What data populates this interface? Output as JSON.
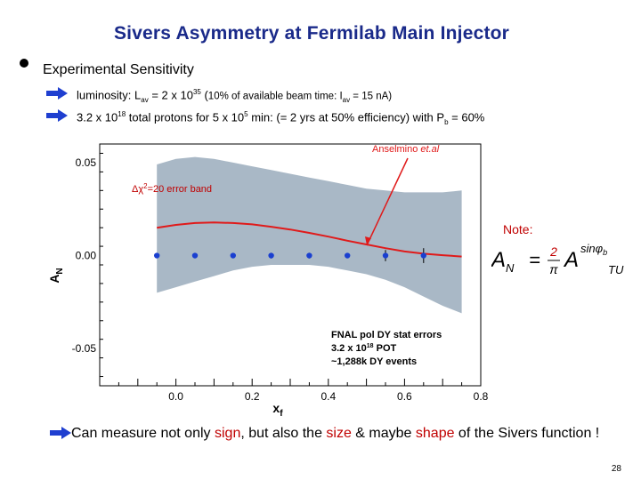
{
  "slide": {
    "title": "Sivers Asymmetry at Fermilab Main Injector",
    "subheading": "Experimental Sensitivity",
    "line1": {
      "a": "luminosity: L",
      "a_sub": "av",
      "b": " = 2 x 10",
      "b_sup": "35",
      "c": " (",
      "d": "10% of available beam time: I",
      "d_sub": "av",
      "e": " = 15 nA)"
    },
    "line2": {
      "a": "3.2 x 10",
      "a_sup": "18",
      "b": " total protons for 5 x 10",
      "b_sup": "5",
      "c": " min:  (= 2 yrs at 50% efficiency) with P",
      "c_sub": "b",
      "d": " = 60%"
    },
    "note_label": "Note:",
    "formula": {
      "lhs": "A",
      "lhs_sub": "N",
      "eq": "=",
      "num": "2",
      "den": "π",
      "rhs": "A",
      "rhs_sup": "sinφ",
      "rhs_sup_sub": "b",
      "rhs_sub": "TU"
    },
    "bottom": {
      "t1": "Can measure not only ",
      "sign": "sign",
      "t2": ", but also the ",
      "size": "size",
      "t3": " & maybe ",
      "shape": "shape",
      "t4": " of the Sivers function !"
    },
    "page_number": "28",
    "colors": {
      "title": "#1a2a8a",
      "accent_red": "#c00000",
      "arrow_blue": "#1f3fd0",
      "band": "#a9b8c6",
      "curve": "#e01a1a",
      "points": "#1a3fd0"
    }
  },
  "chart_data": {
    "type": "line",
    "xlabel": "x",
    "xlabel_sub": "f",
    "ylabel": "A",
    "ylabel_sub": "N",
    "xlim": [
      -0.2,
      0.8
    ],
    "ylim": [
      -0.07,
      0.06
    ],
    "xticks": [
      {
        "v": 0.0,
        "label": "0.0"
      },
      {
        "v": 0.2,
        "label": "0.2"
      },
      {
        "v": 0.4,
        "label": "0.4"
      },
      {
        "v": 0.6,
        "label": "0.6"
      },
      {
        "v": 0.8,
        "label": "0.8"
      }
    ],
    "yticks": [
      {
        "v": 0.05,
        "label": "0.05"
      },
      {
        "v": 0.0,
        "label": "0.00"
      },
      {
        "v": -0.05,
        "label": "-0.05"
      }
    ],
    "series": [
      {
        "name": "Anselmino et.al",
        "name_a": "Anselmino ",
        "name_b": "et.al",
        "kind": "line",
        "x": [
          -0.05,
          0.0,
          0.05,
          0.1,
          0.15,
          0.2,
          0.25,
          0.3,
          0.35,
          0.4,
          0.45,
          0.5,
          0.55,
          0.6,
          0.65,
          0.7,
          0.75
        ],
        "y": [
          0.015,
          0.0165,
          0.0175,
          0.0178,
          0.0175,
          0.0168,
          0.0155,
          0.014,
          0.0122,
          0.0102,
          0.008,
          0.006,
          0.004,
          0.0022,
          0.001,
          0.0002,
          -0.0005
        ]
      },
      {
        "name": "Δχ²=20 error band",
        "name_a": "Δχ",
        "name_sup": "2",
        "name_b": "=20 error band",
        "kind": "band",
        "x": [
          -0.05,
          0.0,
          0.05,
          0.1,
          0.15,
          0.2,
          0.25,
          0.3,
          0.35,
          0.4,
          0.45,
          0.5,
          0.55,
          0.6,
          0.65,
          0.7,
          0.75
        ],
        "upper": [
          0.049,
          0.052,
          0.053,
          0.052,
          0.05,
          0.048,
          0.046,
          0.044,
          0.042,
          0.04,
          0.038,
          0.036,
          0.035,
          0.034,
          0.034,
          0.034,
          0.035
        ],
        "lower": [
          -0.02,
          -0.017,
          -0.014,
          -0.011,
          -0.008,
          -0.006,
          -0.005,
          -0.005,
          -0.005,
          -0.006,
          -0.008,
          -0.01,
          -0.013,
          -0.017,
          -0.022,
          -0.027,
          -0.031
        ]
      },
      {
        "name": "FNAL pol DY stat errors",
        "kind": "points",
        "x": [
          -0.05,
          0.05,
          0.15,
          0.25,
          0.35,
          0.45,
          0.55,
          0.65
        ],
        "y": [
          0.0,
          0.0,
          0.0,
          0.0,
          0.0,
          0.0,
          0.0,
          0.0
        ],
        "err": [
          0.0005,
          0.0005,
          0.0012,
          0.0015,
          0.0015,
          0.001,
          0.003,
          0.004
        ]
      }
    ],
    "annotation": {
      "l1": "FNAL pol DY stat errors",
      "l2a": "3.2 x 10",
      "l2sup": "18",
      "l2b": " POT",
      "l3": "~1,288k DY events"
    },
    "grid": false
  }
}
